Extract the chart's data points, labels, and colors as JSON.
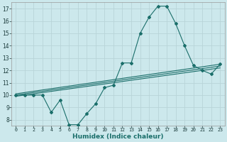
{
  "xlabel": "Humidex (Indice chaleur)",
  "ylabel": "",
  "bg_color": "#cce8ec",
  "grid_color": "#b8d4d8",
  "line_color": "#1a6e6a",
  "xlim": [
    -0.5,
    23.5
  ],
  "ylim": [
    7.5,
    17.5
  ],
  "x_ticks": [
    0,
    1,
    2,
    3,
    4,
    5,
    6,
    7,
    8,
    9,
    10,
    11,
    12,
    13,
    14,
    15,
    16,
    17,
    18,
    19,
    20,
    21,
    22,
    23
  ],
  "y_ticks": [
    8,
    9,
    10,
    11,
    12,
    13,
    14,
    15,
    16,
    17
  ],
  "main_data": [
    [
      0,
      10.0
    ],
    [
      1,
      10.0
    ],
    [
      2,
      10.0
    ],
    [
      3,
      10.0
    ],
    [
      4,
      8.6
    ],
    [
      5,
      9.6
    ],
    [
      6,
      7.6
    ],
    [
      7,
      7.6
    ],
    [
      8,
      8.5
    ],
    [
      9,
      9.3
    ],
    [
      10,
      10.6
    ],
    [
      11,
      10.8
    ],
    [
      12,
      12.6
    ],
    [
      13,
      12.6
    ],
    [
      14,
      15.0
    ],
    [
      15,
      16.3
    ],
    [
      16,
      17.2
    ],
    [
      17,
      17.2
    ],
    [
      18,
      15.8
    ],
    [
      19,
      14.0
    ],
    [
      20,
      12.4
    ],
    [
      21,
      12.0
    ],
    [
      22,
      11.7
    ],
    [
      23,
      12.5
    ]
  ],
  "regression_lines": [
    [
      [
        0,
        9.9
      ],
      [
        23,
        12.2
      ]
    ],
    [
      [
        0,
        10.0
      ],
      [
        23,
        12.35
      ]
    ],
    [
      [
        0,
        10.1
      ],
      [
        23,
        12.5
      ]
    ]
  ]
}
